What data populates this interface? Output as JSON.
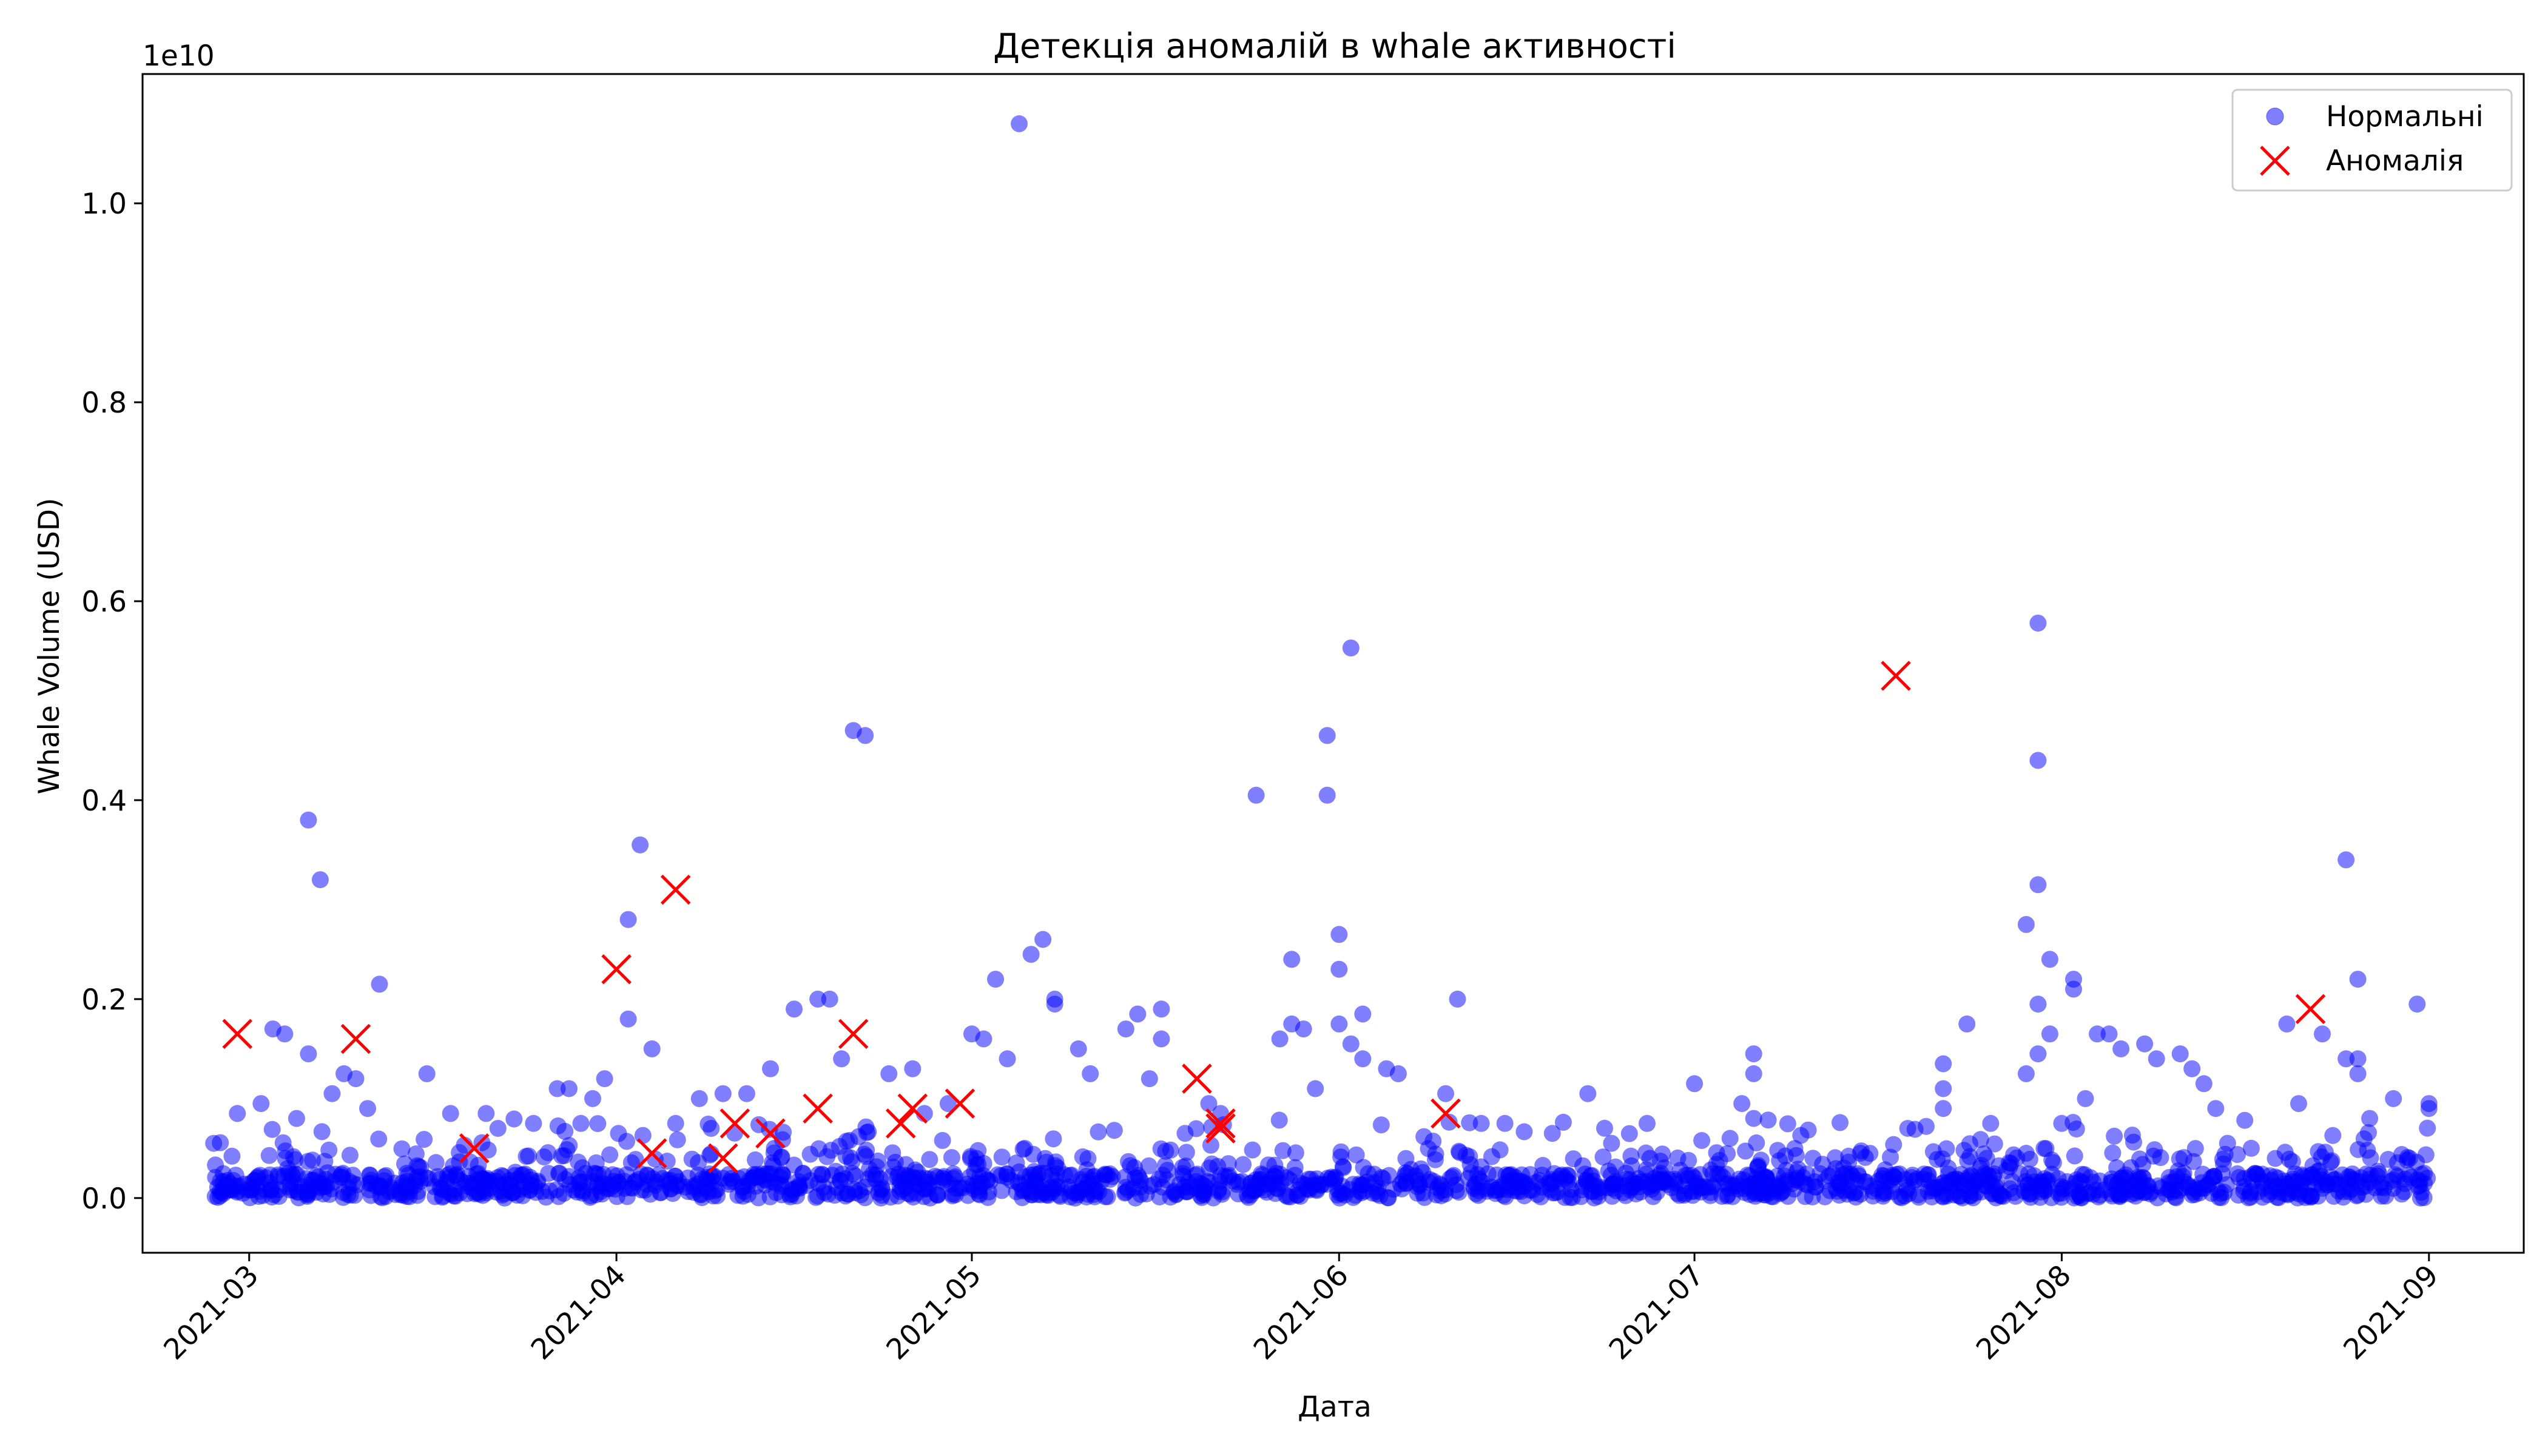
{
  "chart_data": {
    "type": "scatter",
    "title": "Детекція аномалій в whale активності",
    "xlabel": "Дата",
    "ylabel": "Whale Volume (USD)",
    "y_multiplier_label": "1e10",
    "x_range": [
      "2021-02-20",
      "2021-09-09"
    ],
    "ylim": [
      -0.055,
      1.13
    ],
    "y_ticks": [
      0.0,
      0.2,
      0.4,
      0.6,
      0.8,
      1.0
    ],
    "y_tick_labels": [
      "0.0",
      "0.2",
      "0.4",
      "0.6",
      "0.8",
      "1.0"
    ],
    "x_ticks": [
      "2021-03-01",
      "2021-04-01",
      "2021-05-01",
      "2021-06-01",
      "2021-07-01",
      "2021-08-01",
      "2021-09-01"
    ],
    "x_tick_labels": [
      "2021-03",
      "2021-04",
      "2021-05",
      "2021-06",
      "2021-07",
      "2021-08",
      "2021-09"
    ],
    "grid": false,
    "legend_position": "top-right",
    "legend": [
      {
        "label": "Нормальні",
        "marker": "circle",
        "color": "#0000ff"
      },
      {
        "label": "Аномалія",
        "marker": "x",
        "color": "#ff0000"
      }
    ],
    "series": [
      {
        "name": "Нормальні",
        "marker": "circle",
        "color": "#0000ff",
        "alpha": 0.5,
        "points": [
          [
            "2021-03-06",
            0.38
          ],
          [
            "2021-03-07",
            0.32
          ],
          [
            "2021-03-03",
            0.17
          ],
          [
            "2021-03-04",
            0.165
          ],
          [
            "2021-03-12",
            0.215
          ],
          [
            "2021-03-09",
            0.125
          ],
          [
            "2021-03-10",
            0.12
          ],
          [
            "2021-03-06",
            0.145
          ],
          [
            "2021-02-28",
            0.085
          ],
          [
            "2021-03-02",
            0.095
          ],
          [
            "2021-03-05",
            0.08
          ],
          [
            "2021-03-08",
            0.105
          ],
          [
            "2021-03-11",
            0.09
          ],
          [
            "2021-03-16",
            0.125
          ],
          [
            "2021-03-18",
            0.085
          ],
          [
            "2021-03-22",
            0.07
          ],
          [
            "2021-03-25",
            0.075
          ],
          [
            "2021-03-27",
            0.11
          ],
          [
            "2021-03-28",
            0.11
          ],
          [
            "2021-03-29",
            0.075
          ],
          [
            "2021-03-30",
            0.1
          ],
          [
            "2021-03-31",
            0.12
          ],
          [
            "2021-04-02",
            0.28
          ],
          [
            "2021-04-03",
            0.355
          ],
          [
            "2021-04-04",
            0.15
          ],
          [
            "2021-04-02",
            0.18
          ],
          [
            "2021-04-06",
            0.075
          ],
          [
            "2021-04-08",
            0.1
          ],
          [
            "2021-04-10",
            0.105
          ],
          [
            "2021-04-12",
            0.105
          ],
          [
            "2021-04-14",
            0.13
          ],
          [
            "2021-04-16",
            0.19
          ],
          [
            "2021-04-18",
            0.2
          ],
          [
            "2021-04-19",
            0.2
          ],
          [
            "2021-04-21",
            0.47
          ],
          [
            "2021-04-22",
            0.465
          ],
          [
            "2021-04-20",
            0.14
          ],
          [
            "2021-04-24",
            0.125
          ],
          [
            "2021-04-26",
            0.13
          ],
          [
            "2021-04-29",
            0.095
          ],
          [
            "2021-05-01",
            0.165
          ],
          [
            "2021-05-02",
            0.16
          ],
          [
            "2021-05-03",
            0.22
          ],
          [
            "2021-05-04",
            0.14
          ],
          [
            "2021-05-06",
            0.245
          ],
          [
            "2021-05-07",
            0.26
          ],
          [
            "2021-05-08",
            0.195
          ],
          [
            "2021-05-08",
            0.2
          ],
          [
            "2021-05-05",
            1.08
          ],
          [
            "2021-05-10",
            0.15
          ],
          [
            "2021-05-11",
            0.125
          ],
          [
            "2021-05-14",
            0.17
          ],
          [
            "2021-05-15",
            0.185
          ],
          [
            "2021-05-17",
            0.19
          ],
          [
            "2021-05-17",
            0.16
          ],
          [
            "2021-05-16",
            0.12
          ],
          [
            "2021-05-21",
            0.095
          ],
          [
            "2021-05-22",
            0.085
          ],
          [
            "2021-05-25",
            0.405
          ],
          [
            "2021-05-27",
            0.16
          ],
          [
            "2021-05-28",
            0.175
          ],
          [
            "2021-05-28",
            0.24
          ],
          [
            "2021-05-29",
            0.17
          ],
          [
            "2021-05-30",
            0.11
          ],
          [
            "2021-06-01",
            0.175
          ],
          [
            "2021-06-03",
            0.14
          ],
          [
            "2021-06-05",
            0.13
          ],
          [
            "2021-06-06",
            0.125
          ],
          [
            "2021-05-31",
            0.465
          ],
          [
            "2021-05-31",
            0.405
          ],
          [
            "2021-06-01",
            0.23
          ],
          [
            "2021-06-01",
            0.265
          ],
          [
            "2021-06-02",
            0.155
          ],
          [
            "2021-06-02",
            0.553
          ],
          [
            "2021-06-03",
            0.185
          ],
          [
            "2021-06-10",
            0.105
          ],
          [
            "2021-06-11",
            0.2
          ],
          [
            "2021-06-15",
            0.075
          ],
          [
            "2021-06-19",
            0.065
          ],
          [
            "2021-06-22",
            0.105
          ],
          [
            "2021-06-27",
            0.075
          ],
          [
            "2021-07-01",
            0.115
          ],
          [
            "2021-07-04",
            0.06
          ],
          [
            "2021-07-06",
            0.145
          ],
          [
            "2021-07-06",
            0.125
          ],
          [
            "2021-07-05",
            0.095
          ],
          [
            "2021-07-06",
            0.08
          ],
          [
            "2021-07-15",
            0.045
          ],
          [
            "2021-07-22",
            0.135
          ],
          [
            "2021-07-22",
            0.11
          ],
          [
            "2021-07-22",
            0.09
          ],
          [
            "2021-07-24",
            0.175
          ],
          [
            "2021-07-26",
            0.075
          ],
          [
            "2021-07-29",
            0.045
          ],
          [
            "2021-07-30",
            0.578
          ],
          [
            "2021-07-30",
            0.44
          ],
          [
            "2021-07-30",
            0.315
          ],
          [
            "2021-07-29",
            0.275
          ],
          [
            "2021-07-30",
            0.195
          ],
          [
            "2021-07-31",
            0.24
          ],
          [
            "2021-07-31",
            0.165
          ],
          [
            "2021-07-30",
            0.145
          ],
          [
            "2021-07-29",
            0.125
          ],
          [
            "2021-08-01",
            0.075
          ],
          [
            "2021-08-02",
            0.22
          ],
          [
            "2021-08-02",
            0.21
          ],
          [
            "2021-08-03",
            0.1
          ],
          [
            "2021-08-04",
            0.165
          ],
          [
            "2021-08-05",
            0.165
          ],
          [
            "2021-08-06",
            0.15
          ],
          [
            "2021-08-08",
            0.155
          ],
          [
            "2021-08-09",
            0.14
          ],
          [
            "2021-08-11",
            0.145
          ],
          [
            "2021-08-12",
            0.13
          ],
          [
            "2021-08-13",
            0.115
          ],
          [
            "2021-08-14",
            0.09
          ],
          [
            "2021-08-17",
            0.05
          ],
          [
            "2021-08-20",
            0.175
          ],
          [
            "2021-08-21",
            0.095
          ],
          [
            "2021-08-23",
            0.165
          ],
          [
            "2021-08-25",
            0.34
          ],
          [
            "2021-08-26",
            0.22
          ],
          [
            "2021-08-26",
            0.14
          ],
          [
            "2021-08-25",
            0.14
          ],
          [
            "2021-08-26",
            0.125
          ],
          [
            "2021-08-27",
            0.08
          ],
          [
            "2021-08-29",
            0.1
          ],
          [
            "2021-08-31",
            0.195
          ],
          [
            "2021-09-01",
            0.095
          ],
          [
            "2021-09-01",
            0.09
          ],
          [
            "2021-02-26",
            0.055
          ],
          [
            "2021-03-21",
            0.085
          ],
          [
            "2021-04-09",
            0.07
          ],
          [
            "2021-04-27",
            0.085
          ],
          [
            "2021-05-19",
            0.065
          ],
          [
            "2021-06-13",
            0.075
          ],
          [
            "2021-06-24",
            0.055
          ],
          [
            "2021-07-11",
            0.04
          ],
          [
            "2021-07-19",
            0.07
          ],
          [
            "2021-08-15",
            0.055
          ]
        ]
      },
      {
        "name": "Аномалія",
        "marker": "x",
        "color": "#ff0000",
        "points": [
          [
            "2021-02-28",
            0.165
          ],
          [
            "2021-03-10",
            0.16
          ],
          [
            "2021-03-20",
            0.05
          ],
          [
            "2021-04-01",
            0.23
          ],
          [
            "2021-04-04",
            0.045
          ],
          [
            "2021-04-06",
            0.31
          ],
          [
            "2021-04-10",
            0.04
          ],
          [
            "2021-04-11",
            0.075
          ],
          [
            "2021-04-14",
            0.065
          ],
          [
            "2021-04-18",
            0.09
          ],
          [
            "2021-04-21",
            0.165
          ],
          [
            "2021-04-25",
            0.075
          ],
          [
            "2021-04-26",
            0.09
          ],
          [
            "2021-04-30",
            0.095
          ],
          [
            "2021-05-20",
            0.12
          ],
          [
            "2021-05-22",
            0.075
          ],
          [
            "2021-05-22",
            0.07
          ],
          [
            "2021-06-10",
            0.085
          ],
          [
            "2021-07-18",
            0.525
          ],
          [
            "2021-08-22",
            0.19
          ]
        ]
      }
    ]
  }
}
